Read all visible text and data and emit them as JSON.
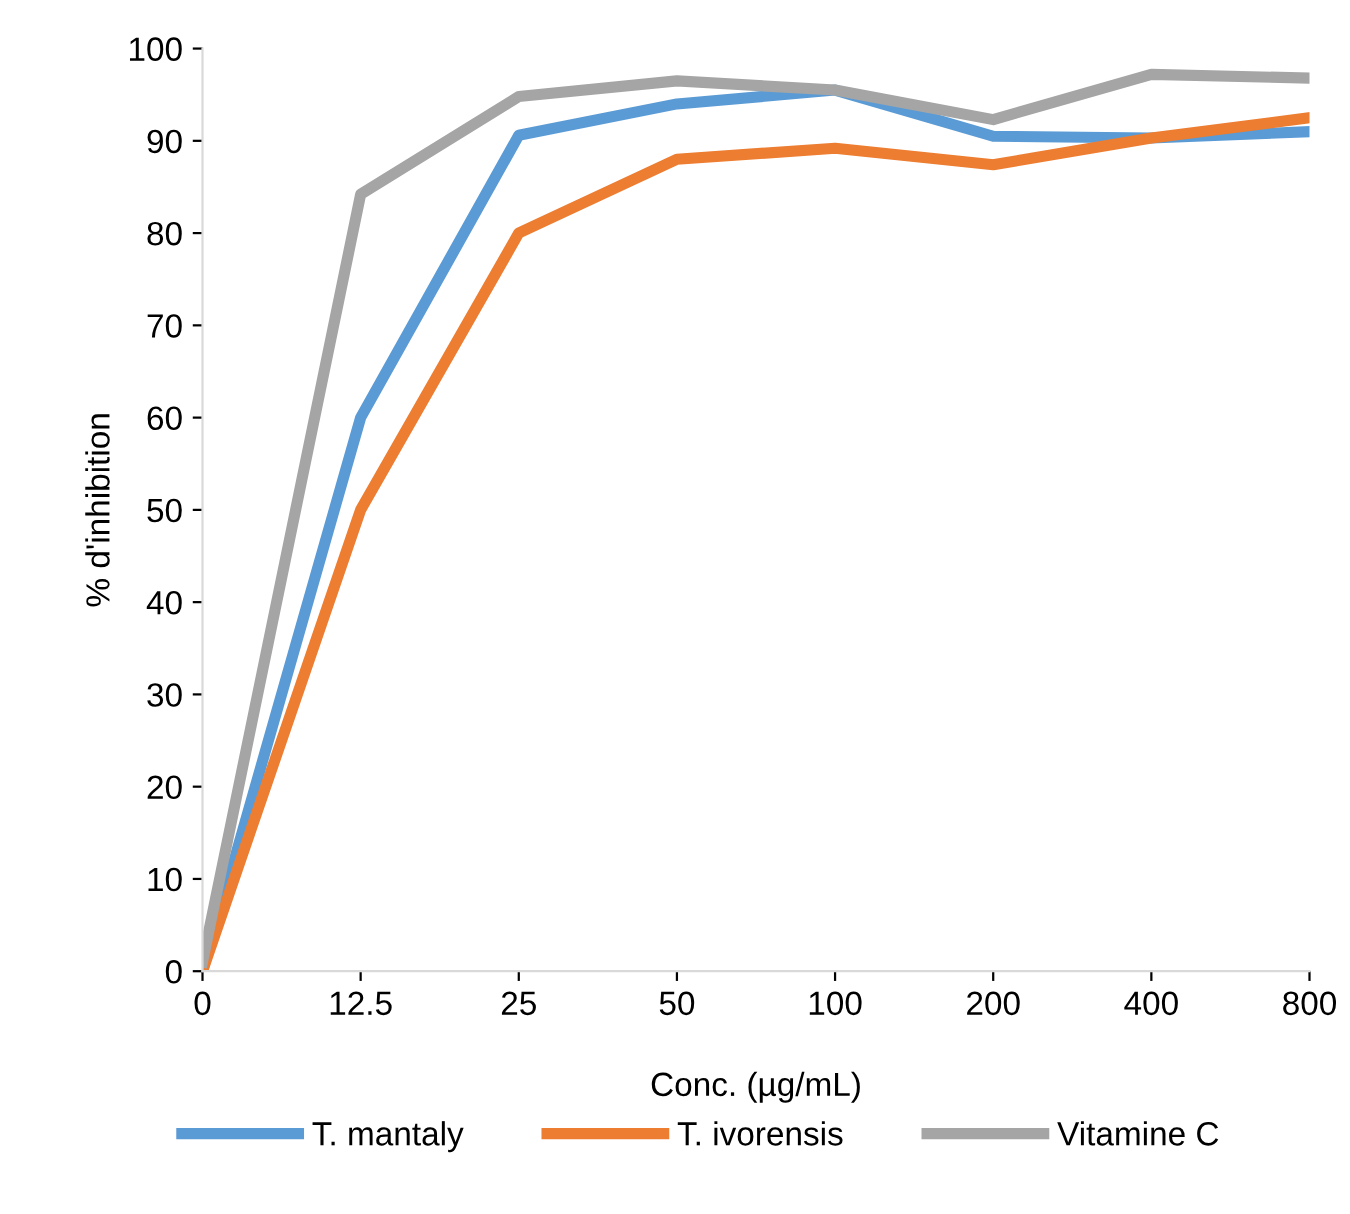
{
  "chart_data": {
    "type": "line",
    "xlabel": "Conc. (µg/mL)",
    "ylabel": "% d'inhibition",
    "categories": [
      "0",
      "12.5",
      "25",
      "50",
      "100",
      "200",
      "400",
      "800"
    ],
    "series": [
      {
        "name": "T. mantaly",
        "color": "#5b9bd5",
        "values": [
          0,
          60,
          90.6,
          94,
          95.5,
          90.5,
          90.3,
          91
        ]
      },
      {
        "name": "T. ivorensis",
        "color": "#ed7d31",
        "values": [
          0,
          50,
          80,
          88,
          89.2,
          87.4,
          90.3,
          92.5
        ]
      },
      {
        "name": "Vitamine C",
        "color": "#a5a5a5",
        "values": [
          1,
          84.2,
          94.8,
          96.5,
          95.5,
          92.3,
          97.2,
          96.8
        ]
      }
    ],
    "ylim": [
      0,
      100
    ],
    "yticks": [
      0,
      10,
      20,
      30,
      40,
      50,
      60,
      70,
      80,
      90,
      100
    ],
    "grid": false,
    "legend": "bottom",
    "marker": "none",
    "line_style": "solid"
  }
}
